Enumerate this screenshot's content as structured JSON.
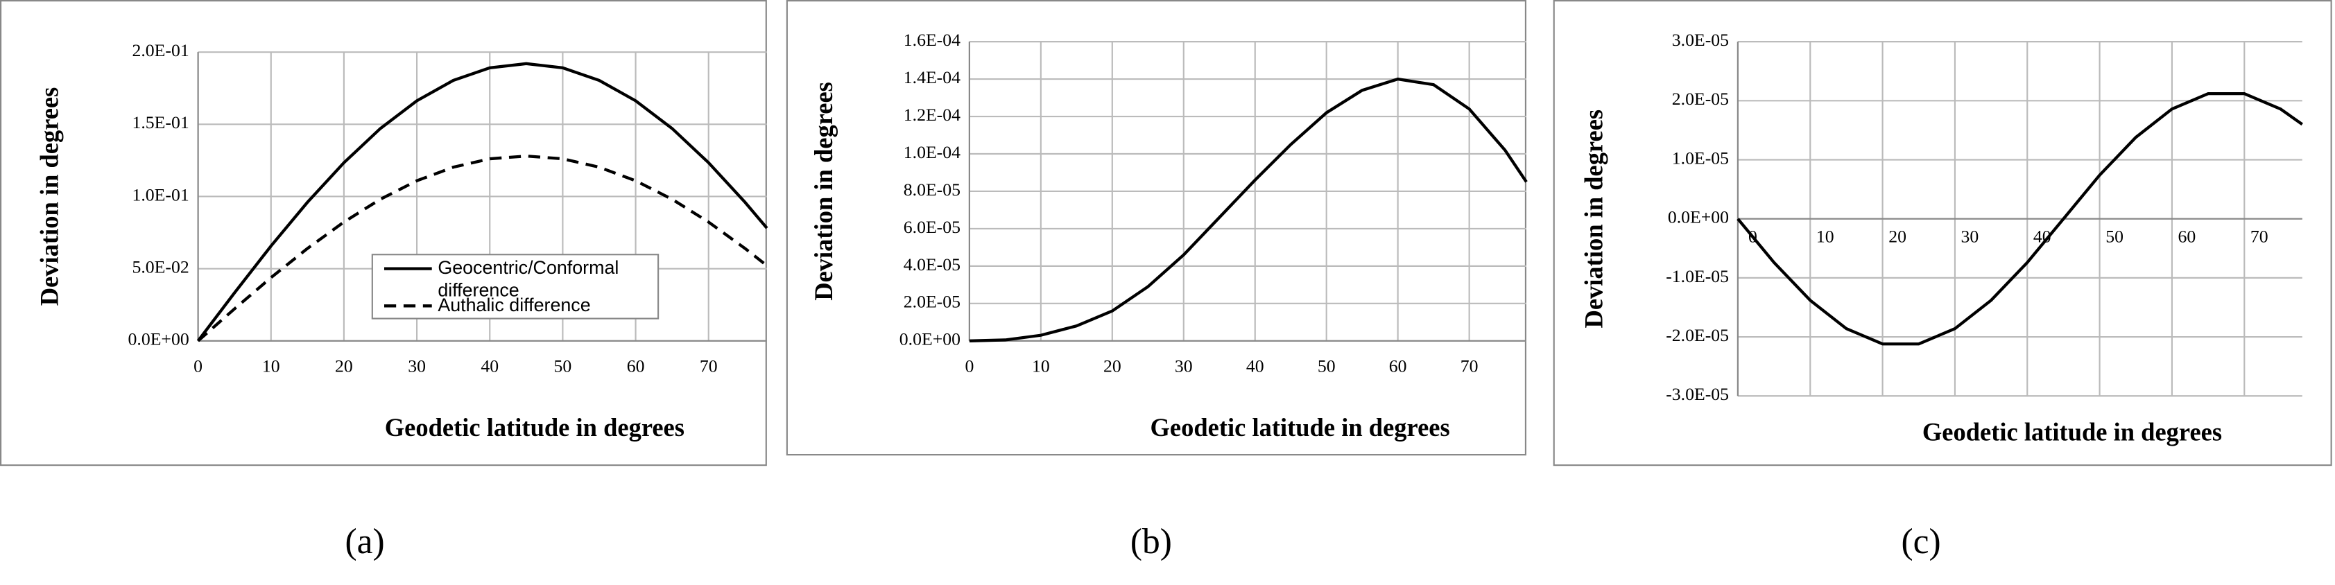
{
  "chart_data": [
    {
      "type": "line",
      "caption": "(a)",
      "xlabel": "Geodetic latitude in degrees",
      "ylabel": "Deviation in degrees",
      "x": [
        0,
        5,
        10,
        15,
        20,
        25,
        30,
        35,
        40,
        45,
        50,
        55,
        60,
        65,
        70,
        75,
        78
      ],
      "series": [
        {
          "name": "Geocentric/Conformal difference",
          "color": "#000000",
          "style": "solid",
          "values": [
            0,
            0.0333,
            0.0657,
            0.096,
            0.1234,
            0.1471,
            0.1663,
            0.1804,
            0.1891,
            0.192,
            0.1891,
            0.1804,
            0.1663,
            0.1471,
            0.1234,
            0.096,
            0.0781
          ]
        },
        {
          "name": "Authalic difference",
          "color": "#000000",
          "style": "dashed",
          "values": [
            0,
            0.0222,
            0.0438,
            0.064,
            0.0823,
            0.0981,
            0.1109,
            0.1203,
            0.1261,
            0.128,
            0.1261,
            0.1203,
            0.1109,
            0.0981,
            0.0823,
            0.064,
            0.0521
          ]
        }
      ],
      "xlim": [
        0,
        78
      ],
      "xticks": [
        0,
        10,
        20,
        30,
        40,
        50,
        60,
        70
      ],
      "ylim": [
        0,
        0.2
      ],
      "yticks": [
        {
          "value": 0,
          "label": "0.0E+00"
        },
        {
          "value": 0.05,
          "label": "5.0E-02"
        },
        {
          "value": 0.1,
          "label": "1.0E-01"
        },
        {
          "value": 0.15,
          "label": "1.5E-01"
        },
        {
          "value": 0.2,
          "label": "2.0E-01"
        }
      ],
      "grid": true,
      "legend": "center"
    },
    {
      "type": "line",
      "caption": "(b)",
      "xlabel": "Geodetic latitude in degrees",
      "ylabel": "Deviation in degrees",
      "x": [
        0,
        5,
        10,
        15,
        20,
        25,
        30,
        35,
        40,
        45,
        50,
        55,
        60,
        65,
        70,
        75,
        78
      ],
      "series": [
        {
          "color": "#000000",
          "style": "solid",
          "values": [
            0,
            5e-07,
            3e-06,
            8e-06,
            1.6e-05,
            2.9e-05,
            4.6e-05,
            6.6e-05,
            8.6e-05,
            0.000105,
            0.000122,
            0.000134,
            0.00014,
            0.000137,
            0.000124,
            0.000102,
            8.5e-05
          ]
        }
      ],
      "xlim": [
        0,
        78
      ],
      "xticks": [
        0,
        10,
        20,
        30,
        40,
        50,
        60,
        70
      ],
      "ylim": [
        0,
        0.00016
      ],
      "yticks": [
        {
          "value": 0,
          "label": "0.0E+00"
        },
        {
          "value": 2e-05,
          "label": "2.0E-05"
        },
        {
          "value": 4e-05,
          "label": "4.0E-05"
        },
        {
          "value": 6e-05,
          "label": "6.0E-05"
        },
        {
          "value": 8e-05,
          "label": "8.0E-05"
        },
        {
          "value": 0.0001,
          "label": "1.0E-04"
        },
        {
          "value": 0.00012,
          "label": "1.2E-04"
        },
        {
          "value": 0.00014,
          "label": "1.4E-04"
        },
        {
          "value": 0.00016,
          "label": "1.6E-04"
        }
      ],
      "grid": true
    },
    {
      "type": "line",
      "caption": "(c)",
      "xlabel": "Geodetic latitude in degrees",
      "ylabel": "Deviation in degrees",
      "x": [
        0,
        5,
        10,
        15,
        20,
        25,
        30,
        35,
        40,
        45,
        50,
        55,
        60,
        65,
        70,
        75,
        78
      ],
      "series": [
        {
          "color": "#000000",
          "style": "solid",
          "values": [
            0,
            -7.4e-06,
            -1.38e-05,
            -1.86e-05,
            -2.12e-05,
            -2.12e-05,
            -1.86e-05,
            -1.38e-05,
            -7.4e-06,
            0,
            7.4e-06,
            1.38e-05,
            1.86e-05,
            2.12e-05,
            2.12e-05,
            1.86e-05,
            1.6e-05
          ]
        }
      ],
      "xlim": [
        0,
        78
      ],
      "xticks": [
        0,
        10,
        20,
        30,
        40,
        50,
        60,
        70
      ],
      "ylim": [
        -3e-05,
        3e-05
      ],
      "yticks": [
        {
          "value": -3e-05,
          "label": "-3.0E-05"
        },
        {
          "value": -2e-05,
          "label": "-2.0E-05"
        },
        {
          "value": -1e-05,
          "label": "-1.0E-05"
        },
        {
          "value": 0,
          "label": "0.0E+00"
        },
        {
          "value": 1e-05,
          "label": "1.0E-05"
        },
        {
          "value": 2e-05,
          "label": "2.0E-05"
        },
        {
          "value": 3e-05,
          "label": "3.0E-05"
        }
      ],
      "grid": true
    }
  ]
}
